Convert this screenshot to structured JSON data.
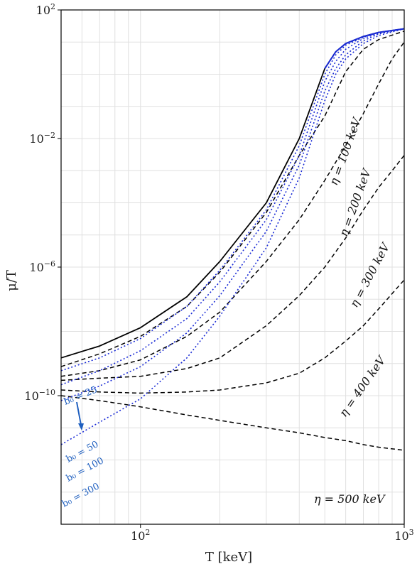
{
  "chart_data": {
    "type": "line",
    "title": "",
    "xlabel": "T [keV]",
    "ylabel": "μ/T",
    "xscale": "log",
    "yscale": "log",
    "xlim": [
      50,
      1000
    ],
    "ylim": [
      1e-14,
      100
    ],
    "grid": true,
    "x_ticks": [
      {
        "value": 100,
        "base": "10",
        "exp": "2"
      },
      {
        "value": 1000,
        "base": "10",
        "exp": "3"
      }
    ],
    "y_ticks": [
      {
        "value": 100,
        "base": "10",
        "exp": "2"
      },
      {
        "value": 0.01,
        "base": "10",
        "exp": "−2"
      },
      {
        "value": 1e-06,
        "base": "10",
        "exp": "−6"
      },
      {
        "value": 1e-10,
        "base": "10",
        "exp": "−10"
      }
    ],
    "colors": {
      "solid": "#000000",
      "eta": "#000000",
      "b0": "#1a2bd6",
      "annot": "#1f5fbf",
      "grid": "#e0e0e0"
    },
    "series": [
      {
        "style": "solid",
        "x": [
          50,
          70,
          100,
          150,
          200,
          300,
          400,
          500,
          550,
          600,
          700,
          800,
          1000
        ],
        "y": [
          1.5e-09,
          3.5e-09,
          1.3e-08,
          1.2e-07,
          1.5e-06,
          0.0001,
          0.01,
          1.5,
          5,
          9,
          15,
          20,
          26
        ]
      },
      {
        "style": "dashed",
        "x": [
          50,
          70,
          100,
          150,
          200,
          300,
          400,
          500,
          600,
          700,
          800,
          1000
        ],
        "y": [
          8e-10,
          2e-09,
          7e-09,
          6e-08,
          7e-07,
          5e-05,
          0.003,
          0.05,
          1.2,
          6,
          12,
          22
        ]
      },
      {
        "style": "dashed",
        "x": [
          50,
          70,
          100,
          150,
          200,
          300,
          400,
          500,
          600,
          700,
          800,
          900,
          1000
        ],
        "y": [
          4e-10,
          6e-10,
          1.3e-09,
          7e-09,
          4e-08,
          1.5e-06,
          3e-05,
          0.0005,
          0.006,
          0.06,
          0.5,
          3,
          10
        ]
      },
      {
        "style": "dashed",
        "x": [
          50,
          70,
          100,
          150,
          200,
          300,
          400,
          500,
          600,
          700,
          800,
          900,
          1000
        ],
        "y": [
          3e-10,
          3.5e-10,
          4e-10,
          7e-10,
          1.5e-09,
          1.5e-08,
          1.3e-07,
          1e-06,
          8e-06,
          6e-05,
          0.0003,
          0.001,
          0.003
        ]
      },
      {
        "style": "dashed",
        "x": [
          50,
          70,
          100,
          150,
          200,
          300,
          400,
          500,
          600,
          700,
          800,
          900,
          1000
        ],
        "y": [
          1.5e-10,
          1.3e-10,
          1.2e-10,
          1.3e-10,
          1.5e-10,
          2.5e-10,
          5e-10,
          1.5e-09,
          5e-09,
          1.5e-08,
          5e-08,
          1.5e-07,
          4e-07
        ]
      },
      {
        "style": "dashed",
        "x": [
          50,
          70,
          100,
          150,
          200,
          300,
          400,
          500,
          600,
          700,
          800,
          1000
        ],
        "y": [
          1e-10,
          7e-11,
          4.5e-11,
          2.5e-11,
          1.7e-11,
          1e-11,
          7e-12,
          5e-12,
          4e-12,
          3e-12,
          2.5e-12,
          2e-12
        ]
      },
      {
        "style": "dotted",
        "x": [
          50,
          70,
          100,
          150,
          200,
          300,
          400,
          500,
          550,
          600,
          700,
          800,
          1000
        ],
        "y": [
          6e-10,
          1.5e-09,
          6e-09,
          6e-08,
          8e-07,
          6e-05,
          0.006,
          1.0,
          4,
          8,
          14,
          20,
          26
        ]
      },
      {
        "style": "dotted",
        "x": [
          50,
          70,
          100,
          150,
          200,
          300,
          400,
          500,
          550,
          600,
          700,
          800,
          1000
        ],
        "y": [
          2.2e-10,
          6e-10,
          2.5e-09,
          2.5e-08,
          3.5e-07,
          3e-05,
          0.003,
          0.6,
          2.5,
          6,
          13,
          19,
          26
        ]
      },
      {
        "style": "dotted",
        "x": [
          50,
          70,
          100,
          150,
          200,
          300,
          400,
          500,
          550,
          600,
          700,
          800,
          1000
        ],
        "y": [
          7e-11,
          2e-10,
          8e-10,
          9e-09,
          1.3e-07,
          1.3e-05,
          0.0015,
          0.3,
          1.5,
          4,
          11,
          18,
          26
        ]
      },
      {
        "style": "dotted",
        "x": [
          50,
          70,
          100,
          150,
          200,
          300,
          400,
          500,
          550,
          600,
          700,
          800,
          1000
        ],
        "y": [
          3e-12,
          1.5e-11,
          8e-11,
          1.5e-09,
          3e-08,
          4e-06,
          0.0006,
          0.15,
          1.0,
          3,
          9,
          16,
          26
        ]
      }
    ],
    "annotations": [
      {
        "text": "η = 100 keV",
        "kind": "eta"
      },
      {
        "text": "η = 200 keV",
        "kind": "eta"
      },
      {
        "text": "η = 300 keV",
        "kind": "eta"
      },
      {
        "text": "η = 400 keV",
        "kind": "eta"
      },
      {
        "text": "η = 500 keV",
        "kind": "eta"
      },
      {
        "text": "b₀ = 25",
        "kind": "b0"
      },
      {
        "text": "b₀ = 50",
        "kind": "b0"
      },
      {
        "text": "b₀ = 100",
        "kind": "b0"
      },
      {
        "text": "b₀ = 300",
        "kind": "b0"
      }
    ]
  }
}
